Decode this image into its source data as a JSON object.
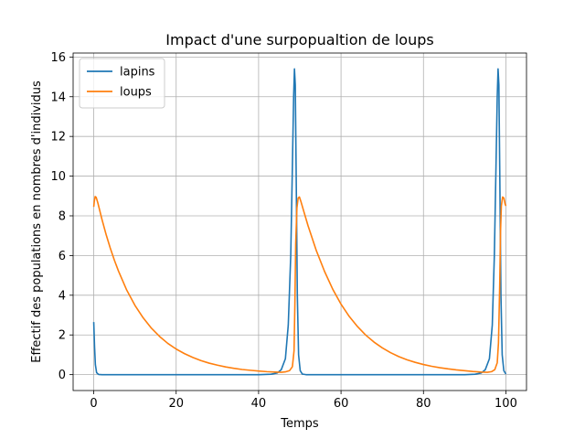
{
  "chart_data": {
    "type": "line",
    "title": "Impact d'une surpopualtion de loups",
    "xlabel": "Temps",
    "ylabel": "Effectif des populations en nombres d'individus",
    "xlim": [
      -5,
      105
    ],
    "ylim": [
      -0.8,
      16.2
    ],
    "xticks": [
      0,
      20,
      40,
      60,
      80,
      100
    ],
    "yticks": [
      0,
      2,
      4,
      6,
      8,
      10,
      12,
      14,
      16
    ],
    "grid": true,
    "legend_position": "top-left",
    "series": [
      {
        "name": "lapins",
        "color": "#1f77b4",
        "points": [
          [
            0,
            2.65
          ],
          [
            0.2,
            1.4
          ],
          [
            0.4,
            0.5
          ],
          [
            0.7,
            0.1
          ],
          [
            1.2,
            0.01
          ],
          [
            2,
            0.0
          ],
          [
            10,
            0.0
          ],
          [
            20,
            0.0
          ],
          [
            30,
            0.0
          ],
          [
            40,
            0.0
          ],
          [
            43,
            0.02
          ],
          [
            44.5,
            0.08
          ],
          [
            45.5,
            0.25
          ],
          [
            46.5,
            0.8
          ],
          [
            47.2,
            2.5
          ],
          [
            47.8,
            6.0
          ],
          [
            48.2,
            10.5
          ],
          [
            48.5,
            14.0
          ],
          [
            48.7,
            15.4
          ],
          [
            48.9,
            14.6
          ],
          [
            49.1,
            10.5
          ],
          [
            49.4,
            4.0
          ],
          [
            49.7,
            1.0
          ],
          [
            50.1,
            0.2
          ],
          [
            50.6,
            0.03
          ],
          [
            51.5,
            0.0
          ],
          [
            60,
            0.0
          ],
          [
            70,
            0.0
          ],
          [
            80,
            0.0
          ],
          [
            90,
            0.0
          ],
          [
            92.5,
            0.02
          ],
          [
            94,
            0.08
          ],
          [
            95,
            0.25
          ],
          [
            96,
            0.8
          ],
          [
            96.7,
            2.5
          ],
          [
            97.2,
            6.0
          ],
          [
            97.6,
            10.5
          ],
          [
            97.9,
            14.0
          ],
          [
            98.1,
            15.4
          ],
          [
            98.3,
            14.6
          ],
          [
            98.5,
            10.5
          ],
          [
            98.8,
            4.0
          ],
          [
            99.1,
            1.0
          ],
          [
            99.5,
            0.2
          ],
          [
            100,
            0.03
          ]
        ]
      },
      {
        "name": "loups",
        "color": "#ff7f0e",
        "points": [
          [
            0,
            8.45
          ],
          [
            0.15,
            8.75
          ],
          [
            0.35,
            8.97
          ],
          [
            0.6,
            8.93
          ],
          [
            1,
            8.65
          ],
          [
            2,
            7.82
          ],
          [
            3,
            7.06
          ],
          [
            4,
            6.38
          ],
          [
            5,
            5.77
          ],
          [
            6,
            5.22
          ],
          [
            8,
            4.26
          ],
          [
            10,
            3.49
          ],
          [
            12,
            2.86
          ],
          [
            14,
            2.34
          ],
          [
            16,
            1.92
          ],
          [
            18,
            1.57
          ],
          [
            20,
            1.29
          ],
          [
            22,
            1.06
          ],
          [
            24,
            0.87
          ],
          [
            26,
            0.71
          ],
          [
            28,
            0.58
          ],
          [
            30,
            0.48
          ],
          [
            32,
            0.39
          ],
          [
            34,
            0.32
          ],
          [
            36,
            0.26
          ],
          [
            38,
            0.22
          ],
          [
            40,
            0.18
          ],
          [
            42,
            0.15
          ],
          [
            44,
            0.13
          ],
          [
            45.5,
            0.12
          ],
          [
            46.5,
            0.14
          ],
          [
            47.5,
            0.2
          ],
          [
            48.2,
            0.4
          ],
          [
            48.6,
            1.2
          ],
          [
            48.8,
            3.5
          ],
          [
            49.0,
            6.6
          ],
          [
            49.3,
            8.4
          ],
          [
            49.6,
            8.9
          ],
          [
            49.9,
            8.95
          ],
          [
            50.3,
            8.7
          ],
          [
            51,
            8.2
          ],
          [
            52,
            7.5
          ],
          [
            54,
            6.25
          ],
          [
            56,
            5.2
          ],
          [
            58,
            4.3
          ],
          [
            60,
            3.55
          ],
          [
            62,
            2.93
          ],
          [
            64,
            2.42
          ],
          [
            66,
            1.99
          ],
          [
            68,
            1.64
          ],
          [
            70,
            1.35
          ],
          [
            72,
            1.11
          ],
          [
            74,
            0.91
          ],
          [
            76,
            0.75
          ],
          [
            78,
            0.62
          ],
          [
            80,
            0.51
          ],
          [
            82,
            0.42
          ],
          [
            84,
            0.35
          ],
          [
            86,
            0.29
          ],
          [
            88,
            0.24
          ],
          [
            90,
            0.2
          ],
          [
            92,
            0.16
          ],
          [
            94,
            0.13
          ],
          [
            95.5,
            0.12
          ],
          [
            96.5,
            0.15
          ],
          [
            97.3,
            0.25
          ],
          [
            97.9,
            0.6
          ],
          [
            98.2,
            1.6
          ],
          [
            98.5,
            4.5
          ],
          [
            98.7,
            7.2
          ],
          [
            98.9,
            8.5
          ],
          [
            99.2,
            8.95
          ],
          [
            99.5,
            8.9
          ],
          [
            99.8,
            8.6
          ],
          [
            100,
            8.5
          ]
        ]
      }
    ]
  }
}
